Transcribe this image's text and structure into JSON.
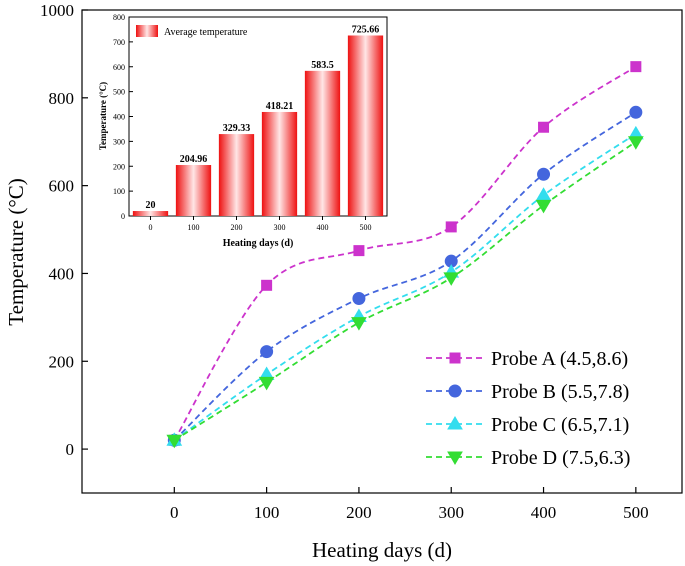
{
  "chart_data": [
    {
      "type": "line",
      "xlabel": "Heating days (d)",
      "ylabel": "Temperature (°C)",
      "xlim": [
        -100,
        550
      ],
      "ylim": [
        -100,
        1000
      ],
      "xticks": [
        0,
        100,
        200,
        300,
        400,
        500
      ],
      "yticks": [
        0,
        200,
        400,
        600,
        800,
        1000
      ],
      "grid": false,
      "legend_position": "bottom-right",
      "series": [
        {
          "name": "Probe A (4.5,8.6)",
          "color": "#cc33cc",
          "marker": "square",
          "x": [
            0,
            100,
            200,
            300,
            400,
            500
          ],
          "y": [
            20,
            373,
            452,
            506,
            733,
            871
          ]
        },
        {
          "name": "Probe B (5.5,7.8)",
          "color": "#4466dd",
          "marker": "circle",
          "x": [
            0,
            100,
            200,
            300,
            400,
            500
          ],
          "y": [
            20,
            222,
            343,
            428,
            626,
            767
          ]
        },
        {
          "name": "Probe C (6.5,7.1)",
          "color": "#33ddee",
          "marker": "triangle-up",
          "x": [
            0,
            100,
            200,
            300,
            400,
            500
          ],
          "y": [
            20,
            170,
            302,
            403,
            578,
            718
          ]
        },
        {
          "name": "Probe D (7.5,6.3)",
          "color": "#33dd33",
          "marker": "triangle-down",
          "x": [
            0,
            100,
            200,
            300,
            400,
            500
          ],
          "y": [
            20,
            152,
            288,
            390,
            555,
            700
          ]
        }
      ]
    },
    {
      "type": "bar",
      "xlabel": "Heating days (d)",
      "ylabel": "Temperature (°C)",
      "ylim": [
        0,
        800
      ],
      "yticks": [
        0,
        100,
        200,
        300,
        400,
        500,
        600,
        700,
        800
      ],
      "categories": [
        "0",
        "100",
        "200",
        "300",
        "400",
        "500"
      ],
      "values": [
        20,
        204.96,
        329.33,
        418.21,
        583.5,
        725.66
      ],
      "value_labels": [
        "20",
        "204.96",
        "329.33",
        "418.21",
        "583.5",
        "725.66"
      ],
      "legend": "Average temperature",
      "legend_position": "top-left",
      "color": "#ee1111"
    }
  ]
}
